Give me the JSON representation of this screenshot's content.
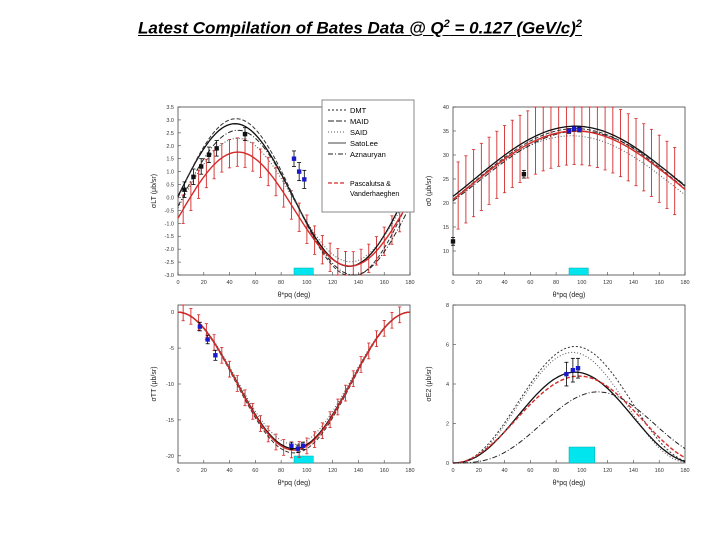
{
  "title": {
    "prefix": "Latest Compilation of Bates Data @ Q",
    "q_exp": "2",
    "mid": " = 0.127 (GeV/c)",
    "unit_exp": "2"
  },
  "legend": {
    "entries": [
      "DMT",
      "MAID",
      "SAID",
      "SatoLee",
      "Aznauryan"
    ],
    "pv_line1": "Pascalutsa &",
    "pv_line2": "Vanderhaeghen"
  },
  "colors": {
    "data_black": "#111111",
    "data_blue": "#1a1acc",
    "band_red": "#d42a2a",
    "highlight": "#00e5ee"
  },
  "chart_data": [
    {
      "type": "scatter",
      "id": "sigmaLT",
      "ylabel": "σLT (μb/sr)",
      "xlabel": "θ*pq (deg)",
      "xlim": [
        0,
        180
      ],
      "ylim": [
        -3.0,
        3.5
      ],
      "xticks": [
        0,
        20,
        40,
        60,
        80,
        100,
        120,
        140,
        160,
        180
      ],
      "yticks": [
        -3.0,
        -2.5,
        -2.0,
        -1.5,
        -1.0,
        -0.5,
        0.0,
        0.5,
        1.0,
        1.5,
        2.0,
        2.5,
        3.0,
        3.5
      ],
      "ytick_labels": [
        "-3.0",
        "-2.5",
        "-2.0",
        "-1.5",
        "-1.0",
        "-0.5",
        "0.0",
        "0.5",
        "1.0",
        "1.5",
        "2.0",
        "2.5",
        "3.0",
        "3.5"
      ],
      "series": [
        {
          "name": "data-black",
          "x": [
            5,
            12,
            18,
            24,
            30,
            52
          ],
          "y": [
            0.3,
            0.8,
            1.2,
            1.65,
            1.9,
            2.45
          ],
          "err": [
            0.3,
            0.3,
            0.3,
            0.3,
            0.3,
            0.25
          ]
        },
        {
          "name": "data-blue",
          "x": [
            90,
            94,
            98
          ],
          "y": [
            1.5,
            1.0,
            0.7
          ],
          "err": [
            0.3,
            0.35,
            0.35
          ]
        }
      ],
      "highlight_x": [
        90,
        105
      ]
    },
    {
      "type": "scatter",
      "id": "sigma0",
      "ylabel": "σ0 (μb/sr)",
      "xlabel": "θ*pq (deg)",
      "xlim": [
        0,
        180
      ],
      "ylim": [
        5,
        40
      ],
      "xticks": [
        0,
        20,
        40,
        60,
        80,
        100,
        120,
        140,
        160,
        180
      ],
      "yticks": [
        10,
        15,
        20,
        25,
        30,
        35,
        40
      ],
      "ytick_labels": [
        "10",
        "15",
        "20",
        "25",
        "30",
        "35",
        "40"
      ],
      "series": [
        {
          "name": "data-black",
          "x": [
            0,
            55
          ],
          "y": [
            12,
            26
          ],
          "err": [
            0.8,
            0.8
          ]
        },
        {
          "name": "data-blue",
          "x": [
            90,
            94,
            98
          ],
          "y": [
            35,
            35.5,
            35.3
          ],
          "err": [
            0.5,
            0.5,
            0.5
          ]
        }
      ],
      "highlight_x": [
        90,
        105
      ]
    },
    {
      "type": "scatter",
      "id": "sigmaTT",
      "ylabel": "σTT (μb/sr)",
      "xlabel": "θ*pq (deg)",
      "xlim": [
        0,
        180
      ],
      "ylim": [
        -21,
        1
      ],
      "xticks": [
        0,
        20,
        40,
        60,
        80,
        100,
        120,
        140,
        160,
        180
      ],
      "yticks": [
        -20,
        -15,
        -10,
        -5,
        0
      ],
      "ytick_labels": [
        "-20",
        "-15",
        "-10",
        "-5",
        "0"
      ],
      "series": [
        {
          "name": "data-blue",
          "x": [
            17,
            23,
            29,
            88,
            93,
            97
          ],
          "y": [
            -2.0,
            -3.8,
            -6.0,
            -18.6,
            -19.0,
            -18.6
          ],
          "err": [
            0.6,
            0.6,
            0.7,
            0.5,
            0.5,
            0.5
          ]
        }
      ],
      "highlight_x": [
        90,
        105
      ]
    },
    {
      "type": "scatter",
      "id": "sigmaE2",
      "ylabel": "σE2 (μb/sr)",
      "xlabel": "θ*pq (deg)",
      "xlim": [
        0,
        180
      ],
      "ylim": [
        0,
        8
      ],
      "xticks": [
        0,
        20,
        40,
        60,
        80,
        100,
        120,
        140,
        160,
        180
      ],
      "yticks": [
        0,
        2,
        4,
        6,
        8
      ],
      "ytick_labels": [
        "0",
        "2",
        "4",
        "6",
        "8"
      ],
      "series": [
        {
          "name": "data-blue",
          "x": [
            88,
            93,
            97
          ],
          "y": [
            4.5,
            4.7,
            4.8
          ],
          "err": [
            0.6,
            0.6,
            0.5
          ]
        }
      ],
      "highlight_x": [
        90,
        110
      ]
    }
  ]
}
